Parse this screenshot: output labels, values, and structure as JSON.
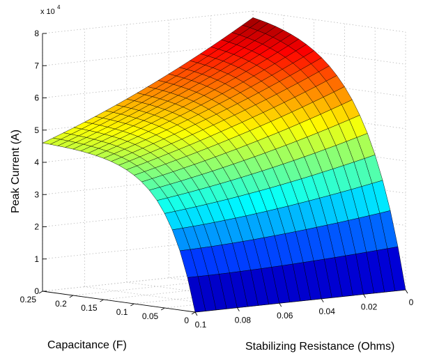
{
  "chart_data": {
    "type": "surface",
    "title": "",
    "xlabel": "Stabilizing Resistance (Ohms)",
    "ylabel": "Capacitance (F)",
    "zlabel": "Peak Current (A)",
    "z_multiplier_label": "x 10",
    "z_multiplier_exponent": "4",
    "xlim": [
      0,
      0.1
    ],
    "ylim": [
      0,
      0.25
    ],
    "zlim": [
      0,
      80000
    ],
    "x_ticks": [
      "0",
      "0.02",
      "0.04",
      "0.06",
      "0.08",
      "0.1"
    ],
    "y_ticks": [
      "0",
      "0.05",
      "0.1",
      "0.15",
      "0.2",
      "0.25"
    ],
    "z_ticks": [
      "0",
      "1",
      "2",
      "3",
      "4",
      "5",
      "6",
      "7",
      "8"
    ],
    "grid": true,
    "colormap": "jet",
    "colormap_stops": [
      "#00008f",
      "#0000ff",
      "#00ffff",
      "#ffff00",
      "#ff0000",
      "#800000"
    ],
    "grid_size": 21,
    "x_range": [
      0,
      0.1
    ],
    "y_range": [
      0,
      0.25
    ],
    "corner_values": {
      "x0_y0": 0,
      "x0_y025": 78000,
      "x01_y025": 46000,
      "x01_y0": 0
    },
    "sample_cross_sections": [
      {
        "x": 0,
        "y": [
          0,
          0.0125,
          0.025,
          0.05,
          0.1,
          0.15,
          0.2,
          0.25
        ],
        "z": [
          0,
          1000,
          6000,
          17000,
          39000,
          55000,
          68000,
          78000
        ]
      },
      {
        "x": 0.1,
        "y": [
          0,
          0.0125,
          0.025,
          0.05,
          0.1,
          0.15,
          0.2,
          0.25
        ],
        "z": [
          0,
          1000,
          5000,
          14000,
          28000,
          36000,
          42000,
          46000
        ]
      }
    ]
  }
}
